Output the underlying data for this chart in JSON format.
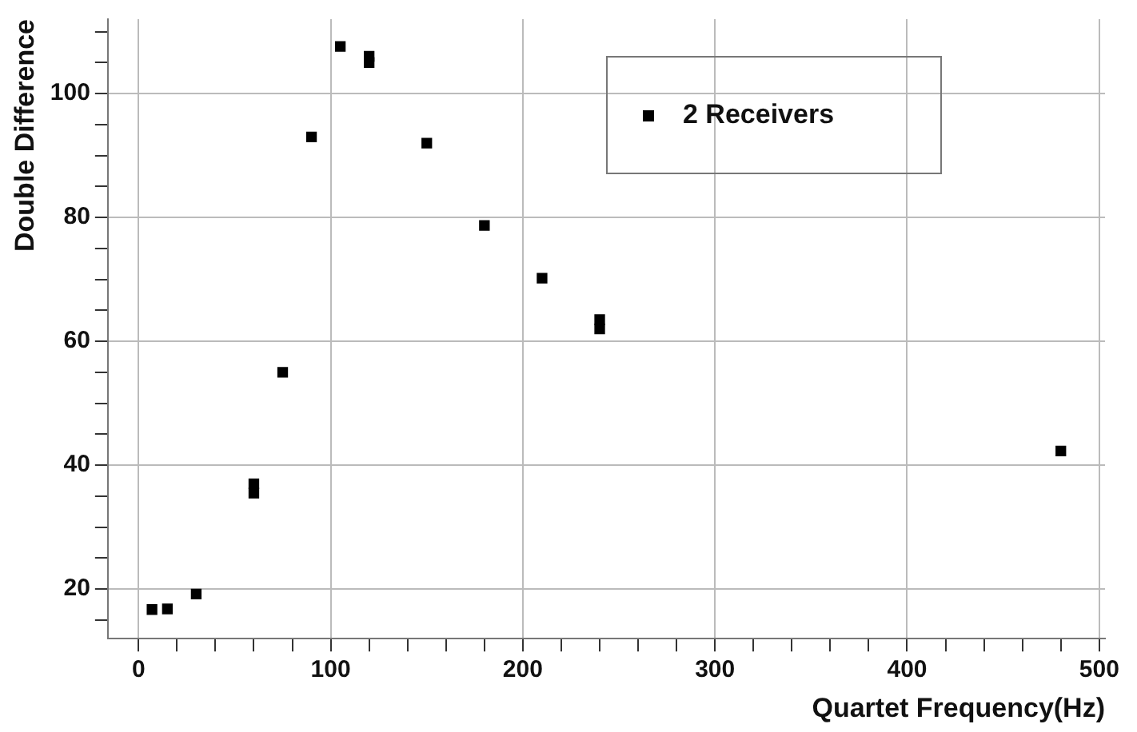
{
  "chart_data": {
    "type": "scatter",
    "xlabel": "Quartet Frequency(Hz)",
    "ylabel": "Double Difference",
    "xlim": [
      -16,
      503
    ],
    "ylim": [
      12,
      112
    ],
    "xticks": [
      0,
      {
        "value": 20,
        "label": null
      },
      {
        "value": 40,
        "label": null
      },
      {
        "value": 60,
        "label": null
      },
      {
        "value": 80,
        "label": null
      },
      100,
      {
        "value": 120,
        "label": null
      },
      {
        "value": 140,
        "label": null
      },
      {
        "value": 160,
        "label": null
      },
      {
        "value": 180,
        "label": null
      },
      200,
      {
        "value": 220,
        "label": null
      },
      {
        "value": 240,
        "label": null
      },
      {
        "value": 260,
        "label": null
      },
      {
        "value": 280,
        "label": null
      },
      300,
      {
        "value": 320,
        "label": null
      },
      {
        "value": 340,
        "label": null
      },
      {
        "value": 360,
        "label": null
      },
      {
        "value": 380,
        "label": null
      },
      400,
      {
        "value": 420,
        "label": null
      },
      {
        "value": 440,
        "label": null
      },
      {
        "value": 460,
        "label": null
      },
      {
        "value": 480,
        "label": null
      },
      500
    ],
    "yticks": [
      {
        "value": 15,
        "label": null
      },
      20,
      {
        "value": 25,
        "label": null
      },
      {
        "value": 30,
        "label": null
      },
      {
        "value": 35,
        "label": null
      },
      40,
      {
        "value": 45,
        "label": null
      },
      {
        "value": 50,
        "label": null
      },
      {
        "value": 55,
        "label": null
      },
      60,
      {
        "value": 65,
        "label": null
      },
      {
        "value": 70,
        "label": null
      },
      {
        "value": 75,
        "label": null
      },
      80,
      {
        "value": 85,
        "label": null
      },
      {
        "value": 90,
        "label": null
      },
      {
        "value": 95,
        "label": null
      },
      100,
      {
        "value": 105,
        "label": null
      },
      {
        "value": 110,
        "label": null
      }
    ],
    "grid": true,
    "legend": "top right",
    "marker": "square",
    "series": [
      {
        "name": "2 Receivers",
        "color": "#000000",
        "x": [
          7,
          15,
          30,
          60,
          60,
          75,
          90,
          105,
          120,
          120,
          150,
          180,
          210,
          240,
          240,
          480
        ],
        "values": [
          16.7,
          16.8,
          19.2,
          35.5,
          37,
          55,
          93,
          107.6,
          105,
          106,
          92,
          78.7,
          70.2,
          62,
          63.5,
          42.3
        ]
      }
    ]
  }
}
